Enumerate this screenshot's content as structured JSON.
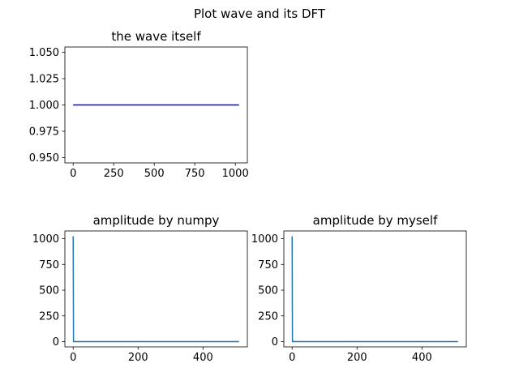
{
  "figure": {
    "suptitle": "Plot wave and its DFT"
  },
  "chart_data": [
    {
      "type": "line",
      "title": "the wave itself",
      "xlabel": "",
      "ylabel": "",
      "xlim": [
        -51.15,
        1074.15
      ],
      "ylim": [
        0.945,
        1.055
      ],
      "xticks": [
        0,
        250,
        500,
        750,
        1000
      ],
      "yticks": [
        0.95,
        0.975,
        1.0,
        1.025,
        1.05
      ],
      "ytick_labels": [
        "0.950",
        "0.975",
        "1.000",
        "1.025",
        "1.050"
      ],
      "series": [
        {
          "color": "#0000ff",
          "x": [
            0,
            1023
          ],
          "y": [
            1.0,
            1.0
          ]
        }
      ],
      "grid": false
    },
    {
      "type": "line",
      "title": "amplitude by numpy",
      "xlabel": "",
      "ylabel": "",
      "xlim": [
        -25.55,
        536.55
      ],
      "ylim": [
        -51.2,
        1075.2
      ],
      "xticks": [
        0,
        200,
        400
      ],
      "yticks": [
        0,
        250,
        500,
        750,
        1000
      ],
      "ytick_labels": [
        "0",
        "250",
        "500",
        "750",
        "1000"
      ],
      "series": [
        {
          "color": "#1f77b4",
          "x": [
            0,
            1,
            511
          ],
          "y": [
            1024,
            0,
            0
          ]
        }
      ],
      "grid": false
    },
    {
      "type": "line",
      "title": "amplitude by myself",
      "xlabel": "",
      "ylabel": "",
      "xlim": [
        -25.55,
        536.55
      ],
      "ylim": [
        -51.2,
        1075.2
      ],
      "xticks": [
        0,
        200,
        400
      ],
      "yticks": [
        0,
        250,
        500,
        750,
        1000
      ],
      "ytick_labels": [
        "0",
        "250",
        "500",
        "750",
        "1000"
      ],
      "series": [
        {
          "color": "#1f77b4",
          "x": [
            0,
            1,
            511
          ],
          "y": [
            1024,
            0,
            0
          ]
        }
      ],
      "grid": false
    }
  ]
}
